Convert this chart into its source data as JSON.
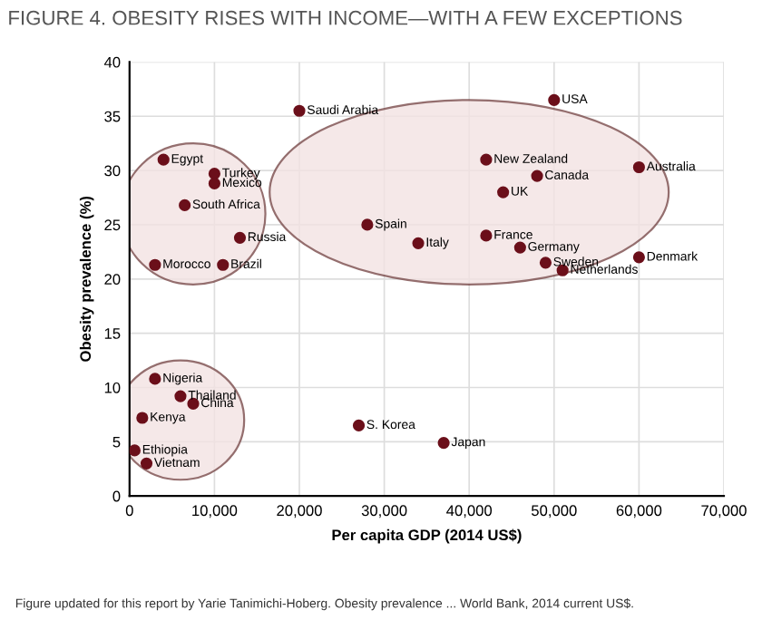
{
  "chart_data": {
    "type": "scatter",
    "title": "FIGURE 4. OBESITY RISES WITH INCOME—WITH A FEW EXCEPTIONS",
    "xlabel": "Per capita GDP (2014 US$)",
    "ylabel": "Obesity prevalence (%)",
    "series": [
      {
        "color": "#6b0f1a",
        "x": [
          4000,
          10000,
          10000,
          6500,
          13000,
          3000,
          11000,
          20000,
          50000,
          42000,
          44000,
          48000,
          60000,
          28000,
          34000,
          42000,
          46000,
          49000,
          51000,
          60000,
          3000,
          6000,
          7500,
          1500,
          600,
          2000,
          27000,
          37000
        ],
        "values": [
          31,
          29.7,
          28.8,
          26.8,
          23.8,
          21.3,
          21.3,
          35.5,
          36.5,
          31,
          28,
          29.5,
          30.3,
          25,
          23.3,
          24,
          22.9,
          21.5,
          20.8,
          22,
          10.8,
          9.2,
          8.5,
          7.2,
          4.2,
          3,
          6.5,
          4.9
        ]
      }
    ],
    "annotations": [
      {
        "text": "Egypt",
        "x": 4000,
        "y": 31
      },
      {
        "text": "Turkey",
        "x": 10000,
        "y": 29.7
      },
      {
        "text": "Mexico",
        "x": 10000,
        "y": 28.8
      },
      {
        "text": "South Africa",
        "x": 6500,
        "y": 26.8
      },
      {
        "text": "Russia",
        "x": 13000,
        "y": 23.8
      },
      {
        "text": "Morocco",
        "x": 3000,
        "y": 21.3
      },
      {
        "text": "Brazil",
        "x": 11000,
        "y": 21.3
      },
      {
        "text": "Saudi Arabia",
        "x": 20000,
        "y": 35.5
      },
      {
        "text": "USA",
        "x": 50000,
        "y": 36.5
      },
      {
        "text": "New Zealand",
        "x": 42000,
        "y": 31
      },
      {
        "text": "UK",
        "x": 44000,
        "y": 28
      },
      {
        "text": "Canada",
        "x": 48000,
        "y": 29.5
      },
      {
        "text": "Australia",
        "x": 60000,
        "y": 30.3
      },
      {
        "text": "Spain",
        "x": 28000,
        "y": 25
      },
      {
        "text": "Italy",
        "x": 34000,
        "y": 23.3
      },
      {
        "text": "France",
        "x": 42000,
        "y": 24
      },
      {
        "text": "Germany",
        "x": 46000,
        "y": 22.9
      },
      {
        "text": "Sweden",
        "x": 49000,
        "y": 21.5
      },
      {
        "text": "Netherlands",
        "x": 51000,
        "y": 20.8
      },
      {
        "text": "Denmark",
        "x": 60000,
        "y": 22
      },
      {
        "text": "Nigeria",
        "x": 3000,
        "y": 10.8
      },
      {
        "text": "Thailand",
        "x": 6000,
        "y": 9.2
      },
      {
        "text": "China",
        "x": 7500,
        "y": 8.5
      },
      {
        "text": "Kenya",
        "x": 1500,
        "y": 7.2
      },
      {
        "text": "Ethiopia",
        "x": 600,
        "y": 4.2
      },
      {
        "text": "Vietnam",
        "x": 2000,
        "y": 3
      },
      {
        "text": "S. Korea",
        "x": 27000,
        "y": 6.5
      },
      {
        "text": "Japan",
        "x": 37000,
        "y": 4.9
      },
      "Figure updated for this report by Yarie Tanimichi-Hoberg. Obesity prevalence ... World Bank, 2014 current US$."
    ],
    "xlim": [
      0,
      70000
    ],
    "ylim": [
      0,
      40
    ],
    "xticks": [
      0,
      {
        "value": 10000,
        "label": "10,000"
      },
      {
        "value": 20000,
        "label": "20,000"
      },
      {
        "value": 30000,
        "label": "30,000"
      },
      {
        "value": 40000,
        "label": "40,000"
      },
      {
        "value": 50000,
        "label": "50,000"
      },
      {
        "value": 60000,
        "label": "60,000"
      },
      {
        "value": 70000,
        "label": "70,000"
      }
    ],
    "yticks": [
      0,
      5,
      10,
      15,
      20,
      25,
      30,
      35,
      40
    ],
    "grid": true,
    "legend": false,
    "marker": "circle"
  }
}
